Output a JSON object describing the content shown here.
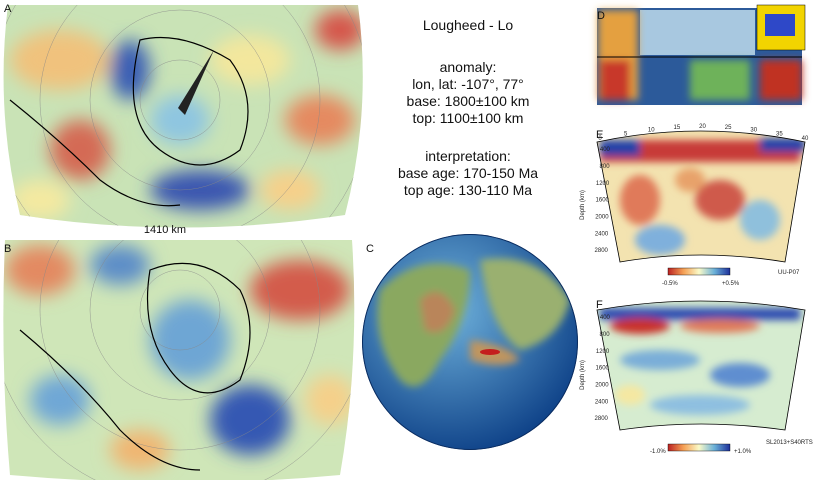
{
  "panels": {
    "a": {
      "label": "A",
      "depth": "1410 km"
    },
    "b": {
      "label": "B"
    },
    "c": {
      "label": "C"
    },
    "d": {
      "label": "D"
    },
    "e": {
      "label": "E",
      "xticks": [
        "0",
        "5",
        "10",
        "15",
        "20",
        "25",
        "30",
        "35",
        "40"
      ],
      "depth_title": "Depth (km)",
      "depth_ticks": [
        "400",
        "800",
        "1200",
        "1600",
        "2000",
        "2400",
        "2800"
      ],
      "scale_min": "-0.5%",
      "scale_max": "+0.5%",
      "model": "UU-P07"
    },
    "f": {
      "label": "F",
      "depth_title": "Depth (km)",
      "depth_ticks": [
        "400",
        "800",
        "1200",
        "1600",
        "2000",
        "2400",
        "2800"
      ],
      "scale_min": "-1.0%",
      "scale_max": "+1.0%",
      "model": "SL2013+S40RTS"
    }
  },
  "info": {
    "title": "Lougheed - Lo",
    "anomaly_heading": "anomaly:",
    "lonlat": "lon, lat: -107°, 77°",
    "base": "base: 1800±100 km",
    "top": "top: 1100±100 km",
    "interpretation_heading": "interpretation:",
    "base_age": "base age: 170-150 Ma",
    "top_age": "top age: 130-110 Ma"
  }
}
